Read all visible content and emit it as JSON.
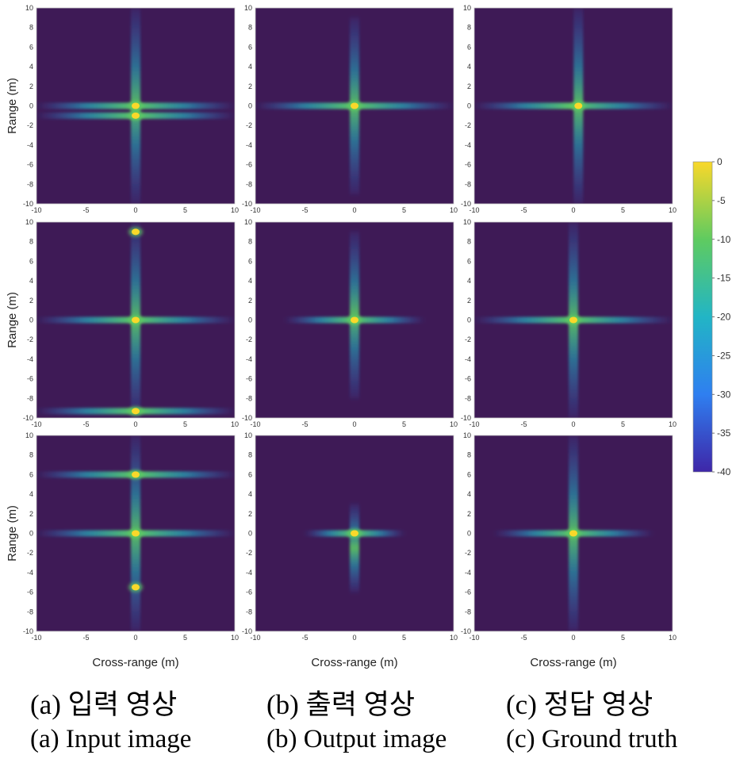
{
  "chart_data": {
    "type": "heatmap",
    "panels": [
      {
        "row": 0,
        "col": 0,
        "column_label": "Input image",
        "horizontal_lines_y": [
          0,
          -1
        ],
        "vertical_extent": [
          -10,
          10
        ],
        "bright_spots": [
          [
            0,
            0
          ],
          [
            0,
            -1
          ]
        ],
        "line_width_x": 10
      },
      {
        "row": 0,
        "col": 1,
        "column_label": "Output image",
        "horizontal_lines_y": [
          0
        ],
        "vertical_extent": [
          -9,
          9
        ],
        "bright_spots": [
          [
            0,
            0
          ]
        ],
        "line_width_x": 10
      },
      {
        "row": 0,
        "col": 2,
        "column_label": "Ground truth",
        "horizontal_lines_y": [
          0
        ],
        "vertical_extent": [
          -10,
          10
        ],
        "bright_spots": [
          [
            0.5,
            0
          ]
        ],
        "line_width_x": 10
      },
      {
        "row": 1,
        "col": 0,
        "column_label": "Input image",
        "horizontal_lines_y": [
          0,
          -9.3
        ],
        "vertical_extent": [
          -10,
          10
        ],
        "bright_spots": [
          [
            0,
            9
          ],
          [
            0,
            0
          ],
          [
            0,
            -9.3
          ]
        ],
        "line_width_x": 10
      },
      {
        "row": 1,
        "col": 1,
        "column_label": "Output image",
        "horizontal_lines_y": [
          0
        ],
        "vertical_extent": [
          -8,
          9
        ],
        "bright_spots": [
          [
            0,
            0
          ]
        ],
        "line_width_x": 7
      },
      {
        "row": 1,
        "col": 2,
        "column_label": "Ground truth",
        "horizontal_lines_y": [
          0
        ],
        "vertical_extent": [
          -10,
          10
        ],
        "bright_spots": [
          [
            0,
            0
          ]
        ],
        "line_width_x": 10
      },
      {
        "row": 2,
        "col": 0,
        "column_label": "Input image",
        "horizontal_lines_y": [
          6,
          0
        ],
        "vertical_extent": [
          -10,
          10
        ],
        "bright_spots": [
          [
            0,
            6
          ],
          [
            0,
            0
          ],
          [
            0,
            -5.5
          ]
        ],
        "line_width_x": 10
      },
      {
        "row": 2,
        "col": 1,
        "column_label": "Output image",
        "horizontal_lines_y": [
          0
        ],
        "vertical_extent": [
          -6,
          3
        ],
        "bright_spots": [
          [
            0,
            0
          ]
        ],
        "line_width_x": 5
      },
      {
        "row": 2,
        "col": 2,
        "column_label": "Ground truth",
        "horizontal_lines_y": [
          0
        ],
        "vertical_extent": [
          -10,
          10
        ],
        "bright_spots": [
          [
            0,
            0
          ]
        ],
        "line_width_x": 8
      }
    ],
    "xlabel": "Cross-range (m)",
    "ylabel": "Range (m)",
    "xlim": [
      -10,
      10
    ],
    "ylim": [
      -10,
      10
    ],
    "x_ticks": [
      -10,
      -5,
      0,
      5,
      10
    ],
    "y_ticks": [
      10,
      8,
      6,
      4,
      2,
      0,
      -2,
      -4,
      -6,
      -8,
      -10
    ],
    "colorbar": {
      "ticks": [
        0,
        -5,
        -10,
        -15,
        -20,
        -25,
        -30,
        -35,
        -40
      ],
      "range": [
        -40,
        0
      ],
      "colormap": "parula"
    },
    "grid": false,
    "legend": "none"
  },
  "colors": {
    "background": "#3e1a56",
    "stop_low": "#3e26a8",
    "stop_mid_low": "#2f7ff0",
    "stop_mid": "#22b5c5",
    "stop_mid_high": "#5fcb60",
    "stop_high": "#f9d82a"
  },
  "captions": {
    "korean": [
      "(a) 입력 영상",
      "(b) 출력 영상",
      "(c) 정답 영상"
    ],
    "english": [
      "(a) Input image",
      "(b) Output image",
      "(c) Ground truth"
    ]
  }
}
